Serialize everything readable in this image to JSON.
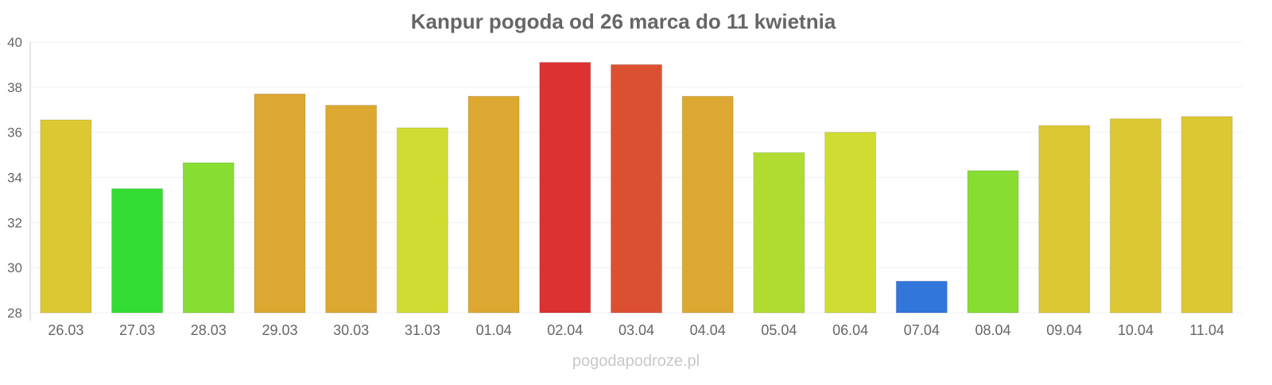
{
  "chart_data": {
    "type": "bar",
    "title": "Kanpur pogoda od 26 marca do 11 kwietnia",
    "xlabel": "",
    "ylabel": "",
    "ylim": [
      28,
      40
    ],
    "yticks": [
      28,
      30,
      32,
      34,
      36,
      38,
      40
    ],
    "grid": true,
    "categories": [
      "26.03",
      "27.03",
      "28.03",
      "29.03",
      "30.03",
      "31.03",
      "01.04",
      "02.04",
      "03.04",
      "04.04",
      "05.04",
      "06.04",
      "07.04",
      "08.04",
      "09.04",
      "10.04",
      "11.04"
    ],
    "values": [
      36.55,
      33.5,
      34.65,
      37.7,
      37.2,
      36.2,
      37.6,
      39.1,
      39.0,
      37.6,
      35.1,
      36.0,
      29.4,
      34.3,
      36.3,
      36.6,
      36.7
    ],
    "colors": [
      "#dcc832",
      "#33dd33",
      "#88dd33",
      "#dca832",
      "#dca832",
      "#d0dc32",
      "#dca832",
      "#dc3232",
      "#dc5032",
      "#dca832",
      "#b0dc32",
      "#d0dc32",
      "#3276dc",
      "#88dd33",
      "#dcc832",
      "#dcc832",
      "#dcc832"
    ]
  },
  "watermark": "pogodapodroze.pl"
}
